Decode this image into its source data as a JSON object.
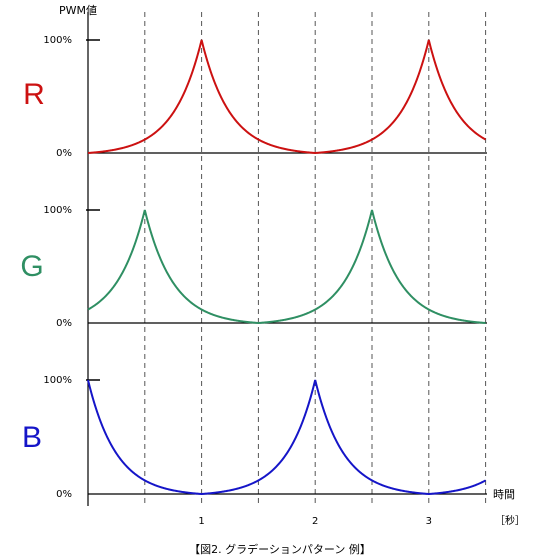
{
  "caption": "【図2. グラデーションパターン 例】",
  "chart_data": [
    {
      "type": "line",
      "label": "R",
      "color": "#cc1111",
      "ylabel": "PWM値",
      "ytick_labels": [
        "100%",
        "0%"
      ],
      "x": [
        0.0,
        0.25,
        0.5,
        0.75,
        1.0,
        1.25,
        1.5,
        1.75,
        2.0,
        2.25,
        2.5,
        2.75,
        3.0,
        3.25,
        3.5
      ],
      "values": [
        0,
        4,
        14,
        37,
        100,
        37,
        14,
        4,
        0,
        4,
        14,
        37,
        100,
        37,
        14
      ],
      "ylim": [
        0,
        100
      ],
      "xlim": [
        0,
        3.5
      ]
    },
    {
      "type": "line",
      "label": "G",
      "color": "#2f8f63",
      "ytick_labels": [
        "100%",
        "0%"
      ],
      "x": [
        0.0,
        0.25,
        0.5,
        0.75,
        1.0,
        1.25,
        1.5,
        1.75,
        2.0,
        2.25,
        2.5,
        2.75,
        3.0,
        3.25,
        3.5
      ],
      "values": [
        14,
        37,
        100,
        37,
        14,
        4,
        0,
        4,
        14,
        37,
        100,
        37,
        14,
        4,
        0
      ],
      "ylim": [
        0,
        100
      ],
      "xlim": [
        0,
        3.5
      ]
    },
    {
      "type": "line",
      "label": "B",
      "color": "#1515c8",
      "ytick_labels": [
        "100%",
        "0%"
      ],
      "x": [
        0.0,
        0.25,
        0.5,
        0.75,
        1.0,
        1.25,
        1.5,
        1.75,
        2.0,
        2.25,
        2.5,
        2.75,
        3.0,
        3.25,
        3.5
      ],
      "values": [
        100,
        37,
        14,
        4,
        0,
        4,
        14,
        37,
        100,
        37,
        14,
        4,
        0,
        4,
        14
      ],
      "ylim": [
        0,
        100
      ],
      "xlim": [
        0,
        3.5
      ],
      "xlabel": "時間",
      "xunit": "［秒］",
      "xticks": [
        1,
        2,
        3
      ],
      "xtick_labels": [
        "1",
        "2",
        "3"
      ],
      "vertical_gridlines": [
        0.5,
        1.0,
        1.5,
        2.0,
        2.5,
        3.0,
        3.5
      ],
      "grid_style": "dashed"
    }
  ]
}
